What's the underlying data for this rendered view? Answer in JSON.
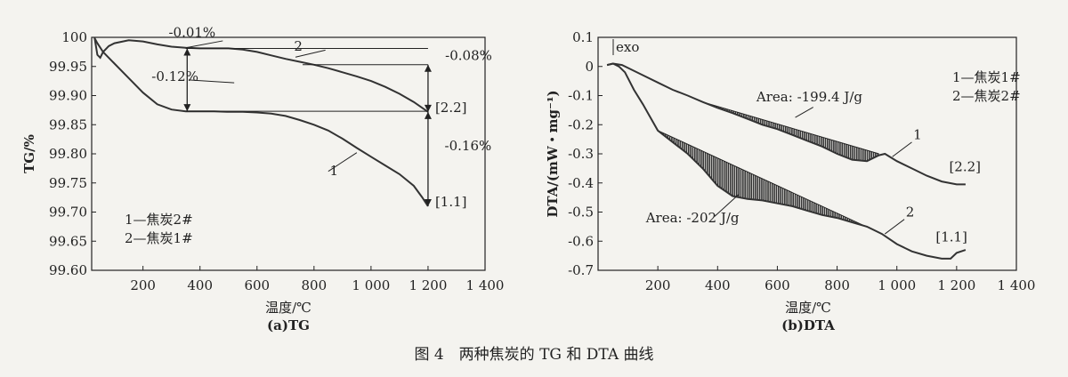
{
  "figure_caption": "图 4　两种焦炭的 TG 和 DTA 曲线",
  "chart_data": [
    {
      "id": "tg",
      "type": "line",
      "subtitle": "(a)TG",
      "xlabel": "温度/℃",
      "ylabel": "TG/%",
      "xlim": [
        20,
        1400
      ],
      "ylim": [
        99.6,
        100.0
      ],
      "x_ticks": [
        200,
        400,
        600,
        800,
        1000,
        1200,
        1400
      ],
      "x_tick_labels": [
        "200",
        "400",
        "600",
        "800",
        "1 000",
        "1 200",
        "1 400"
      ],
      "y_ticks": [
        100.0,
        99.95,
        99.9,
        99.85,
        99.8,
        99.75,
        99.7,
        99.65,
        99.6
      ],
      "y_tick_labels": [
        "100",
        "99.95",
        "99.90",
        "99.85",
        "99.80",
        "99.75",
        "99.70",
        "99.65",
        "99.60"
      ],
      "legend": [
        "1—焦炭2#",
        "2—焦炭1#"
      ],
      "series": [
        {
          "name": "1",
          "x": [
            30,
            40,
            60,
            100,
            150,
            200,
            250,
            300,
            350,
            400,
            450,
            500,
            550,
            600,
            650,
            700,
            750,
            800,
            850,
            900,
            950,
            1000,
            1050,
            1100,
            1150,
            1180,
            1200
          ],
          "y": [
            99.999,
            99.99,
            99.975,
            99.955,
            99.93,
            99.905,
            99.885,
            99.876,
            99.873,
            99.873,
            99.873,
            99.872,
            99.872,
            99.871,
            99.869,
            99.865,
            99.858,
            99.85,
            99.84,
            99.826,
            99.81,
            99.795,
            99.78,
            99.765,
            99.745,
            99.725,
            99.71
          ]
        },
        {
          "name": "2",
          "x": [
            30,
            40,
            50,
            60,
            80,
            100,
            150,
            200,
            250,
            300,
            350,
            400,
            450,
            500,
            550,
            600,
            650,
            700,
            750,
            800,
            850,
            900,
            950,
            1000,
            1050,
            1100,
            1150,
            1200
          ],
          "y": [
            100.0,
            99.97,
            99.965,
            99.975,
            99.985,
            99.99,
            99.995,
            99.993,
            99.988,
            99.984,
            99.982,
            99.981,
            99.981,
            99.981,
            99.979,
            99.975,
            99.969,
            99.963,
            99.958,
            99.953,
            99.947,
            99.94,
            99.933,
            99.925,
            99.915,
            99.903,
            99.889,
            99.872
          ]
        }
      ],
      "annotations": [
        {
          "text": "-0.01%",
          "x": 290,
          "y": 100.001
        },
        {
          "text": "-0.12%",
          "x": 230,
          "y": 99.925
        },
        {
          "text": "2",
          "x": 730,
          "y": 99.977
        },
        {
          "text": "-0.08%",
          "x": 1260,
          "y": 99.961
        },
        {
          "text": "[2.2]",
          "x": 1225,
          "y": 99.872
        },
        {
          "text": "-0.16%",
          "x": 1258,
          "y": 99.806
        },
        {
          "text": "1",
          "x": 855,
          "y": 99.763
        },
        {
          "text": "[1.1]",
          "x": 1225,
          "y": 99.71
        }
      ]
    },
    {
      "id": "dta",
      "type": "line",
      "subtitle": "(b)DTA",
      "xlabel": "温度/℃",
      "ylabel": "DTA/(mW・mg⁻¹)",
      "xlim": [
        0,
        1400
      ],
      "ylim": [
        -0.7,
        0.1
      ],
      "x_ticks": [
        200,
        400,
        600,
        800,
        1000,
        1200,
        1400
      ],
      "x_tick_labels": [
        "200",
        "400",
        "600",
        "800",
        "1 000",
        "1 200",
        "1 400"
      ],
      "y_ticks": [
        0.1,
        0.0,
        -0.1,
        -0.2,
        -0.3,
        -0.4,
        -0.5,
        -0.6,
        -0.7
      ],
      "y_tick_labels": [
        "0.1",
        "0",
        "-0.1",
        "-0.2",
        "-0.3",
        "-0.4",
        "-0.5",
        "-0.6",
        "-0.7"
      ],
      "legend": [
        "1—焦炭1#",
        "2—焦炭2#"
      ],
      "exo_label": "exo",
      "series": [
        {
          "name": "1",
          "x": [
            30,
            50,
            80,
            100,
            150,
            200,
            250,
            300,
            350,
            400,
            450,
            500,
            550,
            600,
            650,
            700,
            750,
            800,
            850,
            900,
            940,
            960,
            1000,
            1050,
            1100,
            1150,
            1200,
            1230
          ],
          "y": [
            0.005,
            0.01,
            0.005,
            -0.005,
            -0.03,
            -0.055,
            -0.08,
            -0.1,
            -0.122,
            -0.142,
            -0.16,
            -0.18,
            -0.2,
            -0.215,
            -0.235,
            -0.255,
            -0.275,
            -0.3,
            -0.32,
            -0.325,
            -0.305,
            -0.3,
            -0.325,
            -0.35,
            -0.375,
            -0.395,
            -0.405,
            -0.405
          ],
          "baseline": [
            [
              350,
              -0.122
            ],
            [
              940,
              -0.3
            ]
          ]
        },
        {
          "name": "2",
          "x": [
            30,
            50,
            70,
            90,
            100,
            120,
            150,
            200,
            250,
            300,
            350,
            400,
            450,
            500,
            550,
            600,
            650,
            700,
            750,
            800,
            850,
            900,
            950,
            1000,
            1050,
            1100,
            1150,
            1180,
            1200,
            1230
          ],
          "y": [
            0.005,
            0.01,
            0.0,
            -0.02,
            -0.04,
            -0.08,
            -0.13,
            -0.22,
            -0.26,
            -0.3,
            -0.35,
            -0.41,
            -0.445,
            -0.455,
            -0.46,
            -0.47,
            -0.48,
            -0.495,
            -0.51,
            -0.52,
            -0.535,
            -0.55,
            -0.575,
            -0.61,
            -0.635,
            -0.65,
            -0.66,
            -0.66,
            -0.64,
            -0.63
          ],
          "baseline": [
            [
              200,
              -0.22
            ],
            [
              950,
              -0.575
            ]
          ]
        }
      ],
      "annotations": [
        {
          "text": "Area: -199.4 J/g",
          "x": 530,
          "y": -0.12
        },
        {
          "text": "1",
          "x": 1055,
          "y": -0.25
        },
        {
          "text": "[2.2]",
          "x": 1175,
          "y": -0.36
        },
        {
          "text": "Area: -202 J/g",
          "x": 160,
          "y": -0.535
        },
        {
          "text": "2",
          "x": 1030,
          "y": -0.515
        },
        {
          "text": "[1.1]",
          "x": 1130,
          "y": -0.6
        }
      ]
    }
  ]
}
